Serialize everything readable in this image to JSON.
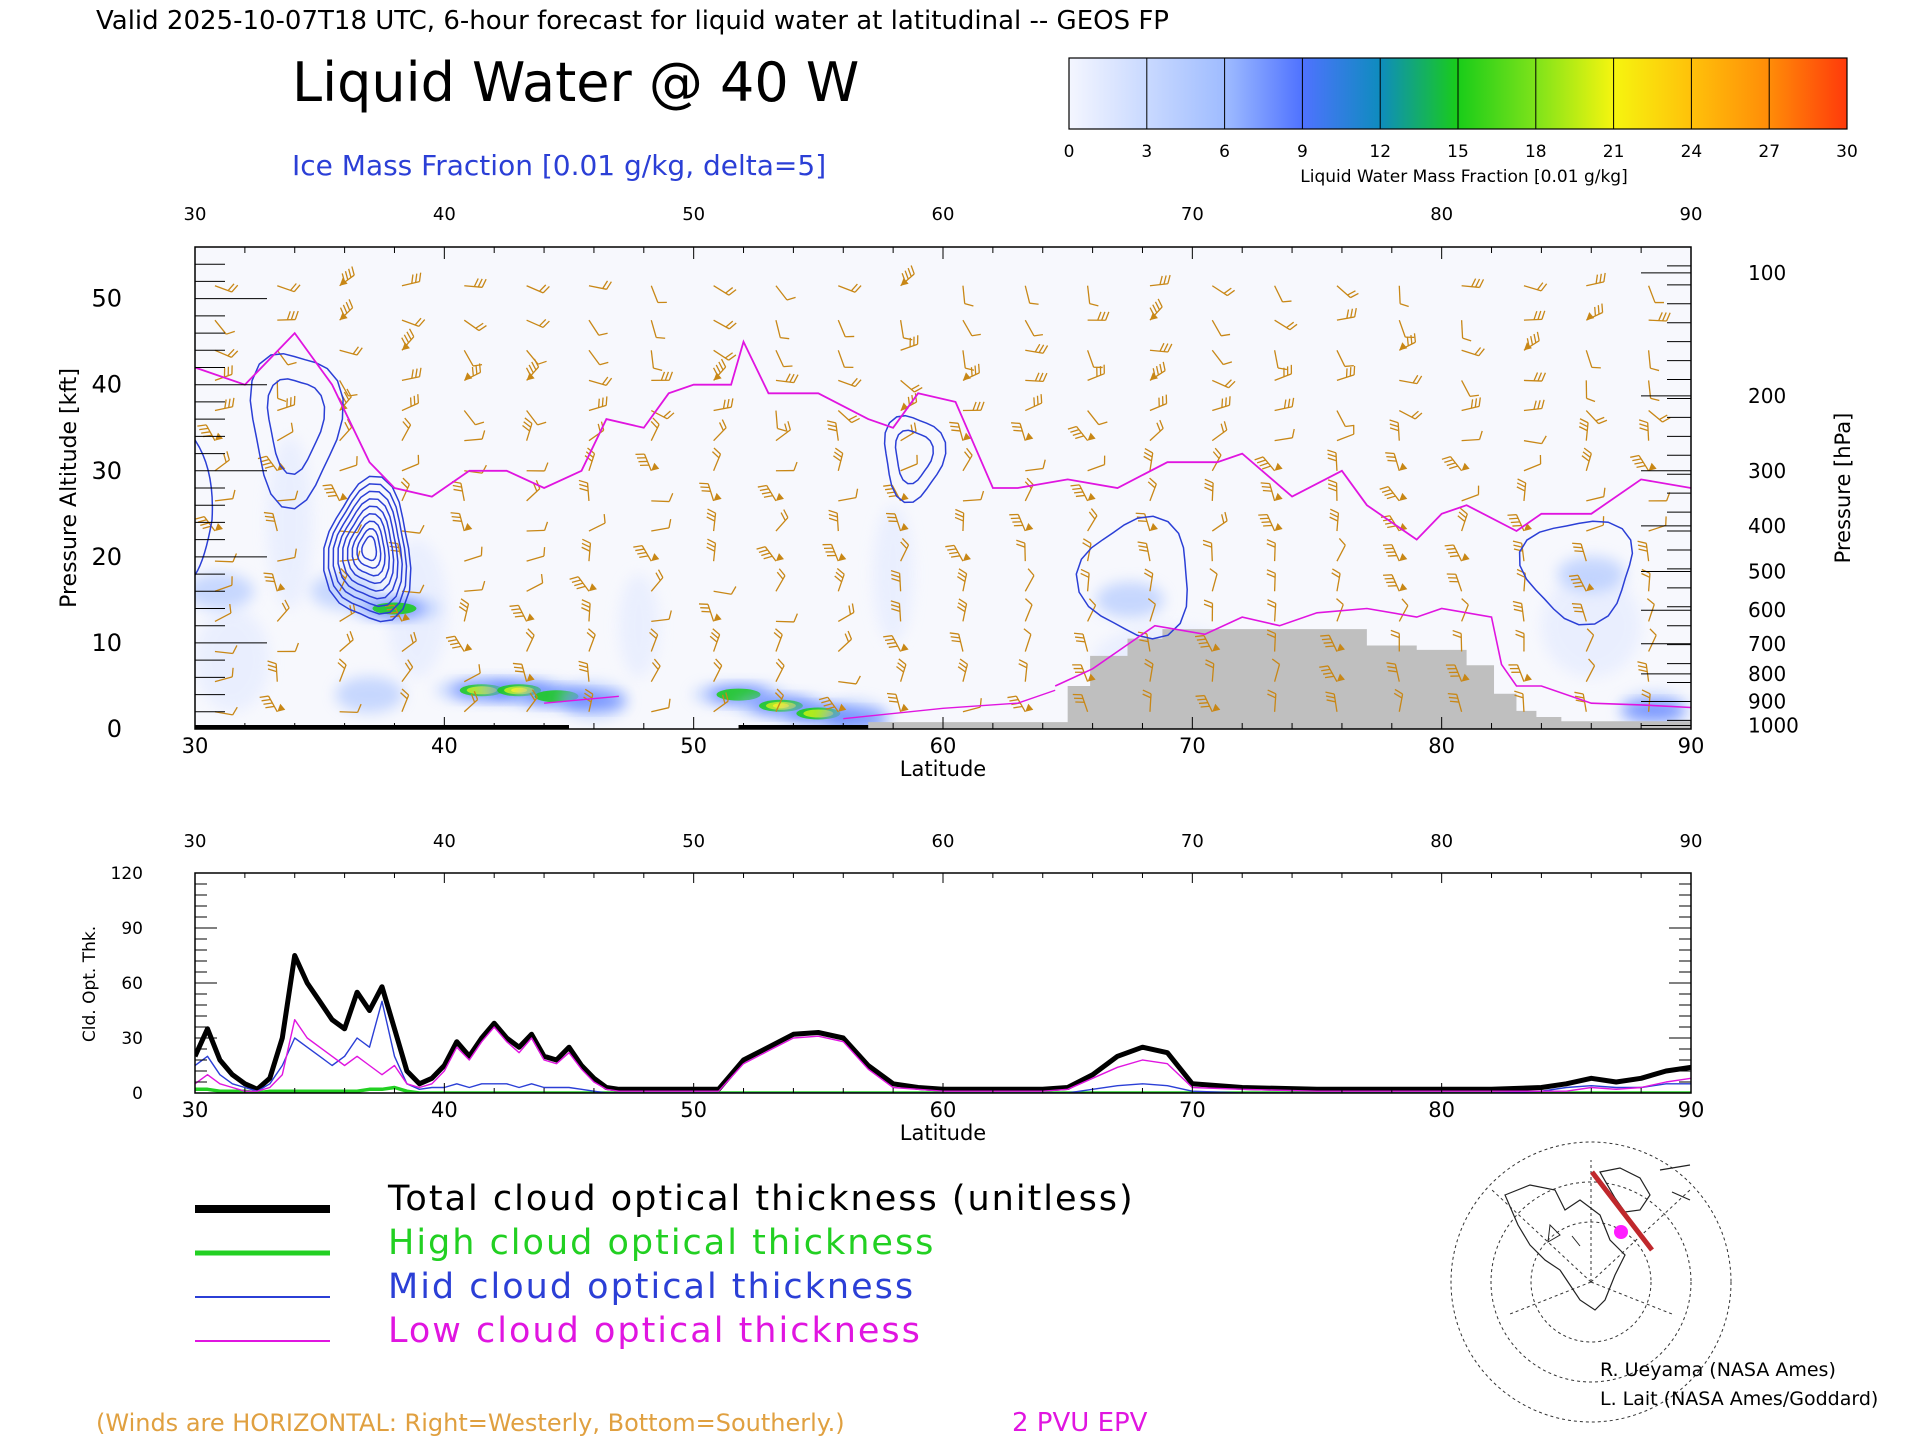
{
  "header": {
    "valid_line": "Valid 2025-10-07T18 UTC, 6-hour forecast for liquid water at latitudinal -- GEOS FP",
    "title": "Liquid Water @ 40 W",
    "ice_label": "Ice Mass Fraction [0.01 g/kg, delta=5]"
  },
  "colorbar": {
    "ticks": [
      "0",
      "3",
      "6",
      "9",
      "12",
      "15",
      "18",
      "21",
      "24",
      "27",
      "30"
    ],
    "label": "Liquid Water Mass Fraction [0.01 g/kg]",
    "colors": [
      "#f4f6ff",
      "#c9d9ff",
      "#9fbcff",
      "#4f72ff",
      "#0e8cbe",
      "#19cc19",
      "#7ee31a",
      "#f6f50f",
      "#ffc10a",
      "#ff8c08",
      "#ff3a0b"
    ]
  },
  "colors": {
    "ice_contour": "#2b3fd6",
    "tropopause": "#e015e0",
    "wind_barb": "#c88716",
    "terrain": "#bfbfbf",
    "total": "#000000",
    "high": "#22d022",
    "mid": "#2b3fd6",
    "low": "#e015e0",
    "footer_winds": "#e0a040"
  },
  "chart_data": [
    {
      "type": "heatmap",
      "xlabel": "Latitude",
      "ylabel": "Pressure Altitude [kft]",
      "y2label": "Pressure [hPa]",
      "xlim": [
        30,
        90
      ],
      "ylim": [
        0,
        56
      ],
      "x_ticks": [
        "30",
        "40",
        "50",
        "60",
        "70",
        "80",
        "90"
      ],
      "y_ticks": [
        "0",
        "10",
        "20",
        "30",
        "40",
        "50"
      ],
      "pressure_ticks": [
        "100",
        "200",
        "300",
        "400",
        "500",
        "600",
        "700",
        "800",
        "900",
        "1000"
      ],
      "pressure_levels_kft": [
        53,
        38.7,
        30,
        23.6,
        18.3,
        13.8,
        9.9,
        6.4,
        3.2,
        0.4
      ],
      "tropopause_2pvu_kft": {
        "lat": [
          30,
          32,
          34,
          35.5,
          37,
          38,
          39.5,
          41,
          42.5,
          44,
          45.5,
          46.5,
          48,
          49,
          50,
          51.5,
          52,
          53,
          55,
          57,
          58,
          59,
          60.5,
          62,
          63,
          65,
          67,
          69,
          71,
          72,
          74,
          76,
          77,
          79,
          80,
          81,
          83,
          84,
          86,
          88,
          90
        ],
        "alt": [
          42,
          40,
          46,
          40,
          31,
          28,
          27,
          30,
          30,
          28,
          30,
          36,
          35,
          39,
          40,
          40,
          45,
          39,
          39,
          36,
          35,
          39,
          38,
          28,
          28,
          29,
          28,
          31,
          31,
          32,
          27,
          30,
          26,
          22,
          25,
          26,
          23,
          25,
          25,
          29,
          28
        ]
      },
      "liquid_blobs": [
        {
          "lat": 31,
          "alt": 16,
          "value": 4
        },
        {
          "lat": 36,
          "alt": 16,
          "value": 5
        },
        {
          "lat": 38,
          "alt": 14,
          "value": 14
        },
        {
          "lat": 37,
          "alt": 4,
          "value": 5
        },
        {
          "lat": 41.5,
          "alt": 4.5,
          "value": 15
        },
        {
          "lat": 43,
          "alt": 4.5,
          "value": 20
        },
        {
          "lat": 44.5,
          "alt": 3.8,
          "value": 14
        },
        {
          "lat": 46,
          "alt": 3.3,
          "value": 10
        },
        {
          "lat": 51.8,
          "alt": 4,
          "value": 14
        },
        {
          "lat": 53.5,
          "alt": 2.7,
          "value": 20
        },
        {
          "lat": 55,
          "alt": 1.8,
          "value": 16
        },
        {
          "lat": 56.5,
          "alt": 1.2,
          "value": 10
        },
        {
          "lat": 67.5,
          "alt": 15,
          "value": 8
        },
        {
          "lat": 86,
          "alt": 18,
          "value": 4
        },
        {
          "lat": 88.5,
          "alt": 2.2,
          "value": 9
        }
      ],
      "ice_contours": [
        {
          "lat": 34,
          "alt": 36,
          "rlat": 1.8,
          "ralt": 9,
          "levels": 2
        },
        {
          "lat": 37,
          "alt": 21,
          "rlat": 1.7,
          "ralt": 8.5,
          "levels": 9
        },
        {
          "lat": 58.8,
          "alt": 32,
          "rlat": 1.2,
          "ralt": 5,
          "levels": 2
        },
        {
          "lat": 67.8,
          "alt": 18,
          "rlat": 2.2,
          "ralt": 7,
          "levels": 1
        },
        {
          "lat": 85.5,
          "alt": 19,
          "rlat": 2.2,
          "ralt": 6,
          "levels": 1
        }
      ],
      "terrain_kft": {
        "lat": [
          57,
          62,
          65,
          65.9,
          67.4,
          68.8,
          72.5,
          77,
          79,
          81,
          82.1,
          83,
          83.8,
          84.8,
          90
        ],
        "alt": [
          0.8,
          0.8,
          5,
          8.5,
          10.5,
          11.6,
          11.6,
          9.7,
          9.2,
          7.4,
          4.1,
          2.1,
          1.4,
          0.9,
          0
        ]
      }
    },
    {
      "type": "line",
      "xlabel": "Latitude",
      "ylabel": "Cld. Opt. Thk.",
      "xlim": [
        30,
        90
      ],
      "ylim": [
        0,
        120
      ],
      "x_ticks": [
        "30",
        "40",
        "50",
        "60",
        "70",
        "80",
        "90"
      ],
      "y_ticks": [
        "0",
        "30",
        "60",
        "90",
        "120"
      ],
      "x": [
        30,
        30.5,
        31,
        31.5,
        32,
        32.5,
        33,
        33.5,
        34,
        34.5,
        35,
        35.5,
        36,
        36.5,
        37,
        37.5,
        38,
        38.5,
        39,
        39.5,
        40,
        40.5,
        41,
        41.5,
        42,
        42.5,
        43,
        43.5,
        44,
        44.5,
        45,
        45.5,
        46,
        46.5,
        47,
        48,
        50,
        51,
        52,
        53,
        54,
        55,
        56,
        57,
        58,
        59,
        60,
        62,
        64,
        65,
        66,
        67,
        68,
        69,
        70,
        72,
        75,
        80,
        82,
        84,
        85,
        86,
        87,
        88,
        89,
        90
      ],
      "series": [
        {
          "name": "Total cloud optical thickness (unitless)",
          "values": [
            20,
            35,
            18,
            10,
            5,
            2,
            8,
            30,
            75,
            60,
            50,
            40,
            35,
            55,
            45,
            58,
            35,
            12,
            5,
            8,
            15,
            28,
            20,
            30,
            38,
            30,
            25,
            32,
            20,
            18,
            25,
            15,
            8,
            3,
            2,
            2,
            2,
            2,
            18,
            25,
            32,
            33,
            30,
            15,
            5,
            3,
            2,
            2,
            2,
            3,
            10,
            20,
            25,
            22,
            5,
            3,
            2,
            2,
            2,
            3,
            5,
            8,
            6,
            8,
            12,
            14
          ]
        },
        {
          "name": "High cloud optical thickness",
          "values": [
            2,
            2,
            1,
            1,
            1,
            0,
            1,
            1,
            1,
            1,
            1,
            1,
            1,
            1,
            2,
            2,
            3,
            1,
            0,
            0,
            0,
            0,
            0,
            0,
            0,
            0,
            0,
            0,
            0,
            0,
            0,
            0,
            0,
            0,
            0,
            0,
            0,
            0,
            0,
            0,
            0,
            0,
            0,
            0,
            0,
            0,
            0,
            0,
            0,
            0,
            0,
            0,
            0,
            0,
            0,
            0,
            0,
            0,
            0,
            0,
            0,
            0,
            0,
            0,
            0,
            0
          ]
        },
        {
          "name": "Mid cloud optical thickness",
          "values": [
            15,
            20,
            10,
            5,
            3,
            1,
            5,
            15,
            30,
            25,
            20,
            15,
            20,
            30,
            25,
            50,
            20,
            5,
            2,
            3,
            3,
            5,
            3,
            5,
            5,
            5,
            3,
            5,
            3,
            3,
            3,
            2,
            1,
            0,
            0,
            0,
            0,
            0,
            0,
            0,
            0,
            0,
            0,
            0,
            0,
            0,
            0,
            0,
            0,
            0,
            2,
            4,
            5,
            4,
            1,
            0,
            0,
            0,
            0,
            1,
            3,
            4,
            3,
            3,
            5,
            5
          ]
        },
        {
          "name": "Low cloud optical thickness",
          "values": [
            5,
            10,
            5,
            3,
            1,
            1,
            3,
            10,
            40,
            30,
            25,
            20,
            15,
            20,
            15,
            10,
            15,
            5,
            3,
            5,
            12,
            25,
            18,
            28,
            36,
            28,
            22,
            30,
            18,
            16,
            22,
            13,
            6,
            2,
            1,
            1,
            1,
            1,
            16,
            23,
            30,
            31,
            28,
            13,
            3,
            2,
            1,
            1,
            1,
            2,
            8,
            14,
            18,
            16,
            3,
            2,
            1,
            1,
            1,
            1,
            1,
            3,
            2,
            3,
            6,
            8
          ]
        }
      ]
    }
  ],
  "lower_labels": {
    "xlabel": "Latitude"
  },
  "legend": {
    "total": "Total cloud optical thickness (unitless)",
    "high": "High cloud optical thickness",
    "mid": "Mid cloud optical thickness",
    "low": "Low cloud optical thickness"
  },
  "credits": {
    "line1": "R. Ueyama (NASA Ames)",
    "line2": "L. Lait (NASA Ames/Goddard)"
  },
  "footer": {
    "winds_note": "(Winds are HORIZONTAL: Right=Westerly, Bottom=Southerly.)",
    "epv_label": "2 PVU EPV"
  }
}
